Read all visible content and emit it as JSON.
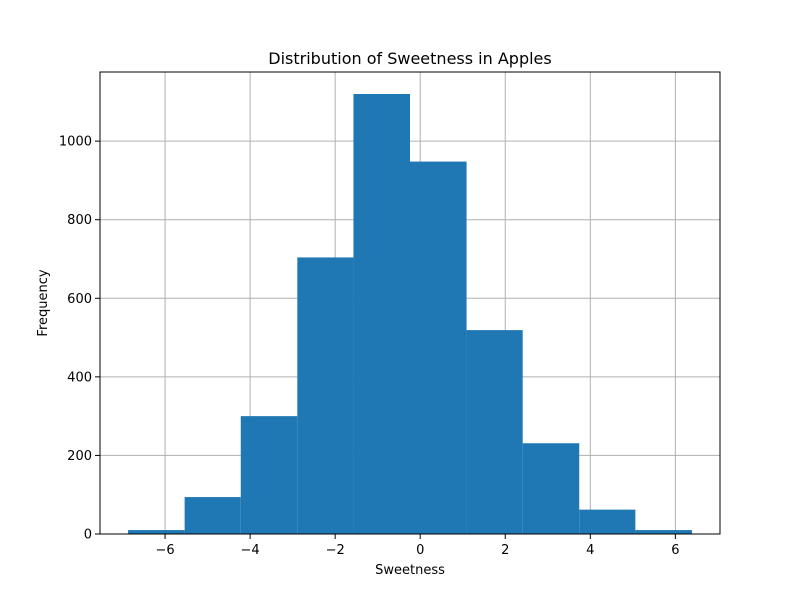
{
  "chart_data": {
    "type": "bar",
    "subtype": "histogram",
    "title": "Distribution of Sweetness in Apples",
    "xlabel": "Sweetness",
    "ylabel": "Frequency",
    "bin_edges": [
      -6.87,
      -5.54,
      -4.22,
      -2.89,
      -1.57,
      -0.24,
      1.09,
      2.41,
      3.74,
      5.06,
      6.39
    ],
    "values": [
      10,
      94,
      300,
      704,
      1120,
      948,
      519,
      231,
      62,
      10
    ],
    "xlim": [
      -7.53,
      7.05
    ],
    "ylim": [
      0,
      1176
    ],
    "xticks": [
      -6,
      -4,
      -2,
      0,
      2,
      4,
      6
    ],
    "xtick_labels": [
      "−6",
      "−4",
      "−2",
      "0",
      "2",
      "4",
      "6"
    ],
    "yticks": [
      0,
      200,
      400,
      600,
      800,
      1000
    ],
    "ytick_labels": [
      "0",
      "200",
      "400",
      "600",
      "800",
      "1000"
    ],
    "grid": true,
    "bar_color": "#1f77b4"
  }
}
